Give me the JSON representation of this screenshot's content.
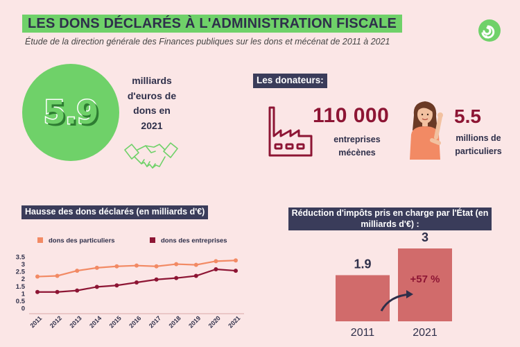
{
  "header": {
    "title": "LES DONS DÉCLARÉS À L'ADMINISTRATION FISCALE",
    "subtitle": "Étude de la direction générale des Finances publiques sur les dons et mécénat de 2011 à 2021"
  },
  "headline": {
    "value": "5.9",
    "label": "milliards d'euros de dons en 2021",
    "icon": "handshake-icon"
  },
  "donateurs": {
    "section_label": "Les donateurs:",
    "entreprises": {
      "value": "110 000",
      "label": "entreprises mécènes",
      "icon": "factory-icon"
    },
    "particuliers": {
      "value": "5.5",
      "label": "millions de particuliers",
      "icon": "woman-icon"
    }
  },
  "hausse_label": "Hausse des dons déclarés (en milliards d'€)",
  "reduction_label": "Réduction d'impôts pris en charge par l'État (en milliards d'€) :",
  "colors": {
    "green": "#6fd169",
    "dark_navy": "#3a3c5a",
    "burgundy": "#8d1534",
    "orange": "#f28a64",
    "bar": "#d16b6b",
    "background": "#fbe6e6"
  },
  "chart_data": [
    {
      "type": "line",
      "x": [
        "2011",
        "2012",
        "2013",
        "2014",
        "2015",
        "2016",
        "2017",
        "2018",
        "2019",
        "2020",
        "2021"
      ],
      "series": [
        {
          "name": "dons des particuliers",
          "color": "#f28a64",
          "values": [
            2.15,
            2.2,
            2.55,
            2.75,
            2.85,
            2.9,
            2.85,
            3.0,
            2.95,
            3.2,
            3.25
          ]
        },
        {
          "name": "dons des entreprises",
          "color": "#8d1534",
          "values": [
            1.1,
            1.1,
            1.2,
            1.45,
            1.55,
            1.75,
            1.95,
            2.05,
            2.2,
            2.65,
            2.55
          ]
        }
      ],
      "y_ticks": [
        "0",
        "0.5",
        "1",
        "1.5",
        "2",
        "2.5",
        "3",
        "3.5"
      ],
      "ylim": [
        0,
        3.5
      ],
      "legend_position": "top",
      "grid": false
    },
    {
      "type": "bar",
      "categories": [
        "2011",
        "2021"
      ],
      "values": [
        1.9,
        3
      ],
      "value_labels": [
        "1.9",
        "3"
      ],
      "annotation": "+57 %",
      "ylim": [
        0,
        3
      ]
    }
  ]
}
